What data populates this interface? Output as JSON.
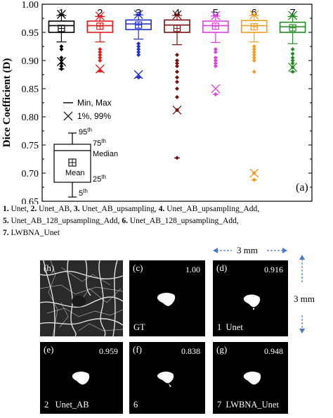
{
  "chart_data": {
    "type": "box",
    "panel_label": "(a)",
    "ylabel": "Dice Coefficient (D)",
    "ylim": [
      0.65,
      1.0
    ],
    "yticks": [
      "0.65",
      "0.70",
      "0.75",
      "0.80",
      "0.85",
      "0.90",
      "0.95",
      "1.00"
    ],
    "categories": [
      "1",
      "2",
      "3",
      "4",
      "5",
      "6",
      "7"
    ],
    "colors": [
      "#000000",
      "#e41a1c",
      "#1f2dd6",
      "#7b1010",
      "#e040e0",
      "#f39c1f",
      "#228b22"
    ],
    "boxes": [
      {
        "q1": 0.95,
        "median": 0.962,
        "q3": 0.97,
        "mean": 0.957,
        "p5": 0.933,
        "p95": 0.98,
        "p1": 0.898,
        "p99": 0.982,
        "min": 0.885,
        "max": 0.982,
        "outliers": [
          0.905,
          0.9,
          0.895,
          0.89,
          0.885,
          0.92,
          0.925
        ]
      },
      {
        "q1": 0.95,
        "median": 0.962,
        "q3": 0.97,
        "mean": 0.961,
        "p5": 0.933,
        "p95": 0.978,
        "p1": 0.885,
        "p99": 0.979,
        "min": 0.88,
        "max": 0.979,
        "outliers": [
          0.92,
          0.915,
          0.91,
          0.905,
          0.9,
          0.882
        ]
      },
      {
        "q1": 0.955,
        "median": 0.965,
        "q3": 0.972,
        "mean": 0.963,
        "p5": 0.938,
        "p95": 0.981,
        "p1": 0.875,
        "p99": 0.982,
        "min": 0.87,
        "max": 0.982,
        "outliers": [
          0.93,
          0.925,
          0.92,
          0.915,
          0.91,
          0.87
        ]
      },
      {
        "q1": 0.95,
        "median": 0.963,
        "q3": 0.972,
        "mean": 0.957,
        "p5": 0.928,
        "p95": 0.98,
        "p1": 0.812,
        "p99": 0.981,
        "min": 0.727,
        "max": 0.981,
        "outliers": [
          0.91,
          0.9,
          0.895,
          0.89,
          0.88,
          0.87,
          0.862,
          0.85,
          0.835,
          0.812,
          0.727
        ]
      },
      {
        "q1": 0.95,
        "median": 0.962,
        "q3": 0.97,
        "mean": 0.961,
        "p5": 0.932,
        "p95": 0.979,
        "p1": 0.85,
        "p99": 0.98,
        "min": 0.84,
        "max": 0.98,
        "outliers": [
          0.92,
          0.915,
          0.905,
          0.9,
          0.895,
          0.89,
          0.84
        ]
      },
      {
        "q1": 0.95,
        "median": 0.962,
        "q3": 0.971,
        "mean": 0.96,
        "p5": 0.933,
        "p95": 0.98,
        "p1": 0.7,
        "p99": 0.981,
        "min": 0.688,
        "max": 0.981,
        "outliers": [
          0.925,
          0.92,
          0.915,
          0.91,
          0.905,
          0.9,
          0.88,
          0.7,
          0.688
        ]
      },
      {
        "q1": 0.95,
        "median": 0.96,
        "q3": 0.968,
        "mean": 0.958,
        "p5": 0.93,
        "p95": 0.978,
        "p1": 0.888,
        "p99": 0.98,
        "min": 0.88,
        "max": 0.98,
        "outliers": [
          0.92,
          0.912,
          0.905,
          0.9,
          0.895,
          0.888,
          0.88
        ]
      }
    ],
    "legend": {
      "minmax_label": "Min, Max",
      "pct_label": "1%, 99%",
      "p95": "95",
      "p75": "75",
      "median": "Median",
      "mean": "Mean",
      "p25": "25",
      "p5": "5",
      "th": "th"
    }
  },
  "caption": {
    "items": [
      {
        "num": "1.",
        "name": " Unet, "
      },
      {
        "num": "2.",
        "name": " Unet_AB, "
      },
      {
        "num": "3.",
        "name": " Unet_AB_upsampling, "
      },
      {
        "num": "4.",
        "name": " Unet_AB_upsampling_Add,"
      },
      {
        "num": "5.",
        "name": " Unet_AB_128_upsampling_Add, "
      },
      {
        "num": "6.",
        "name": " Unet_AB_128_upsampling_Add,"
      },
      {
        "num": "7.",
        "name": " LWBNA_Unet"
      }
    ]
  },
  "panels": {
    "h": {
      "letter": "(h)"
    },
    "c": {
      "letter": "(c)",
      "score": "1.00",
      "caption": "GT"
    },
    "d": {
      "letter": "(d)",
      "score": "0.916",
      "caption": "1  Unet"
    },
    "e": {
      "letter": "(e)",
      "score": "0.959",
      "caption": "2   Unet_AB"
    },
    "f": {
      "letter": "(f)",
      "score": "0.838",
      "caption": "6"
    },
    "g": {
      "letter": "(g)",
      "score": "0.948",
      "caption": "7  LWBNA_Unet"
    }
  },
  "dimensions": {
    "horizontal": "3 mm",
    "vertical": "3 mm"
  }
}
